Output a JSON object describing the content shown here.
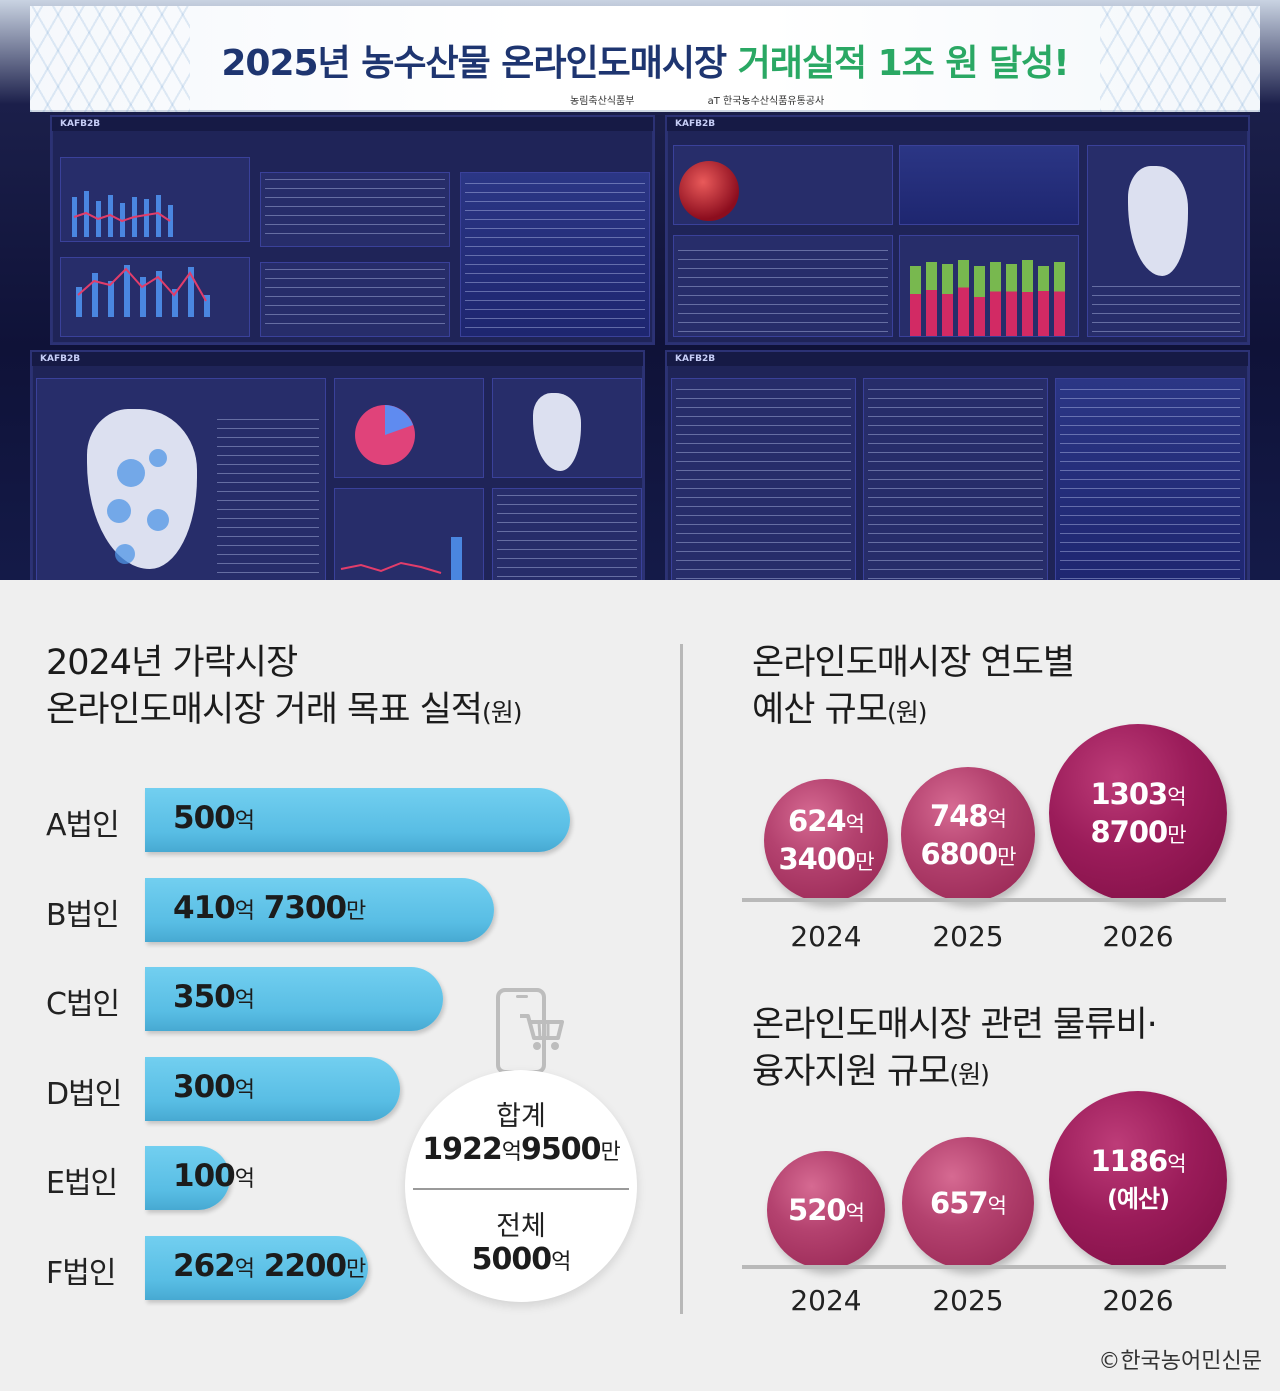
{
  "banner": {
    "title_main": "2025년 농수산물 온라인도매시장",
    "title_highlight": "거래실적 1조 원 달성!",
    "logo_left": "농림축산식품부",
    "logo_right": "aT 한국농수산식품유통공사"
  },
  "screens": {
    "brand": "KAFB2B"
  },
  "chart_data": [
    {
      "type": "bar",
      "orientation": "horizontal",
      "title_line1": "2024년 가락시장",
      "title_line2": "온라인도매시장 거래 목표 실적",
      "unit": "(원)",
      "categories": [
        "A법인",
        "B법인",
        "C법인",
        "D법인",
        "E법인",
        "F법인"
      ],
      "values": [
        500,
        410.73,
        350,
        300,
        100,
        262.22
      ],
      "value_labels": [
        [
          {
            "n": "500",
            "u": "억"
          }
        ],
        [
          {
            "n": "410",
            "u": "억"
          },
          {
            "n": " 7300",
            "u": "만"
          }
        ],
        [
          {
            "n": "350",
            "u": "억"
          }
        ],
        [
          {
            "n": "300",
            "u": "억"
          }
        ],
        [
          {
            "n": "100",
            "u": "억"
          }
        ],
        [
          {
            "n": "262",
            "u": "억"
          },
          {
            "n": " 2200",
            "u": "만"
          }
        ]
      ],
      "value_unit": "억 원",
      "total": {
        "label": "합계",
        "value_parts": [
          {
            "n": "1922",
            "u": "억"
          },
          {
            "n": "9500",
            "u": "만"
          }
        ],
        "overall_label": "전체",
        "overall_parts": [
          {
            "n": "5000",
            "u": "억"
          }
        ]
      },
      "bar_color": "#58bde4"
    },
    {
      "type": "bubble",
      "title_line1": "온라인도매시장 연도별",
      "title_line2": "예산 규모",
      "unit": "(원)",
      "categories": [
        "2024",
        "2025",
        "2026"
      ],
      "values": [
        624.34,
        748.68,
        1303.87
      ],
      "value_unit": "억 원",
      "labels": [
        [
          [
            {
              "n": "624",
              "u": "억"
            }
          ],
          [
            {
              "n": "3400",
              "u": "만"
            }
          ]
        ],
        [
          [
            {
              "n": "748",
              "u": "억"
            }
          ],
          [
            {
              "n": "6800",
              "u": "만"
            }
          ]
        ],
        [
          [
            {
              "n": "1303",
              "u": "억"
            }
          ],
          [
            {
              "n": "8700",
              "u": "만"
            }
          ]
        ]
      ],
      "color": "#b4426f",
      "highlight_color": "#9b1c5a"
    },
    {
      "type": "bubble",
      "title_line1": "온라인도매시장 관련 물류비·",
      "title_line2": "융자지원 규모",
      "unit": "(원)",
      "categories": [
        "2024",
        "2025",
        "2026"
      ],
      "values": [
        520,
        657,
        1186
      ],
      "value_unit": "억 원",
      "labels": [
        [
          [
            {
              "n": "520",
              "u": "억"
            }
          ]
        ],
        [
          [
            {
              "n": "657",
              "u": "억"
            }
          ]
        ],
        [
          [
            {
              "n": "1186",
              "u": "억"
            }
          ],
          [
            {
              "n": "(예산)",
              "u": ""
            }
          ]
        ]
      ],
      "color": "#b4426f",
      "highlight_color": "#9b1c5a"
    }
  ],
  "credit": "©한국농어민신문"
}
